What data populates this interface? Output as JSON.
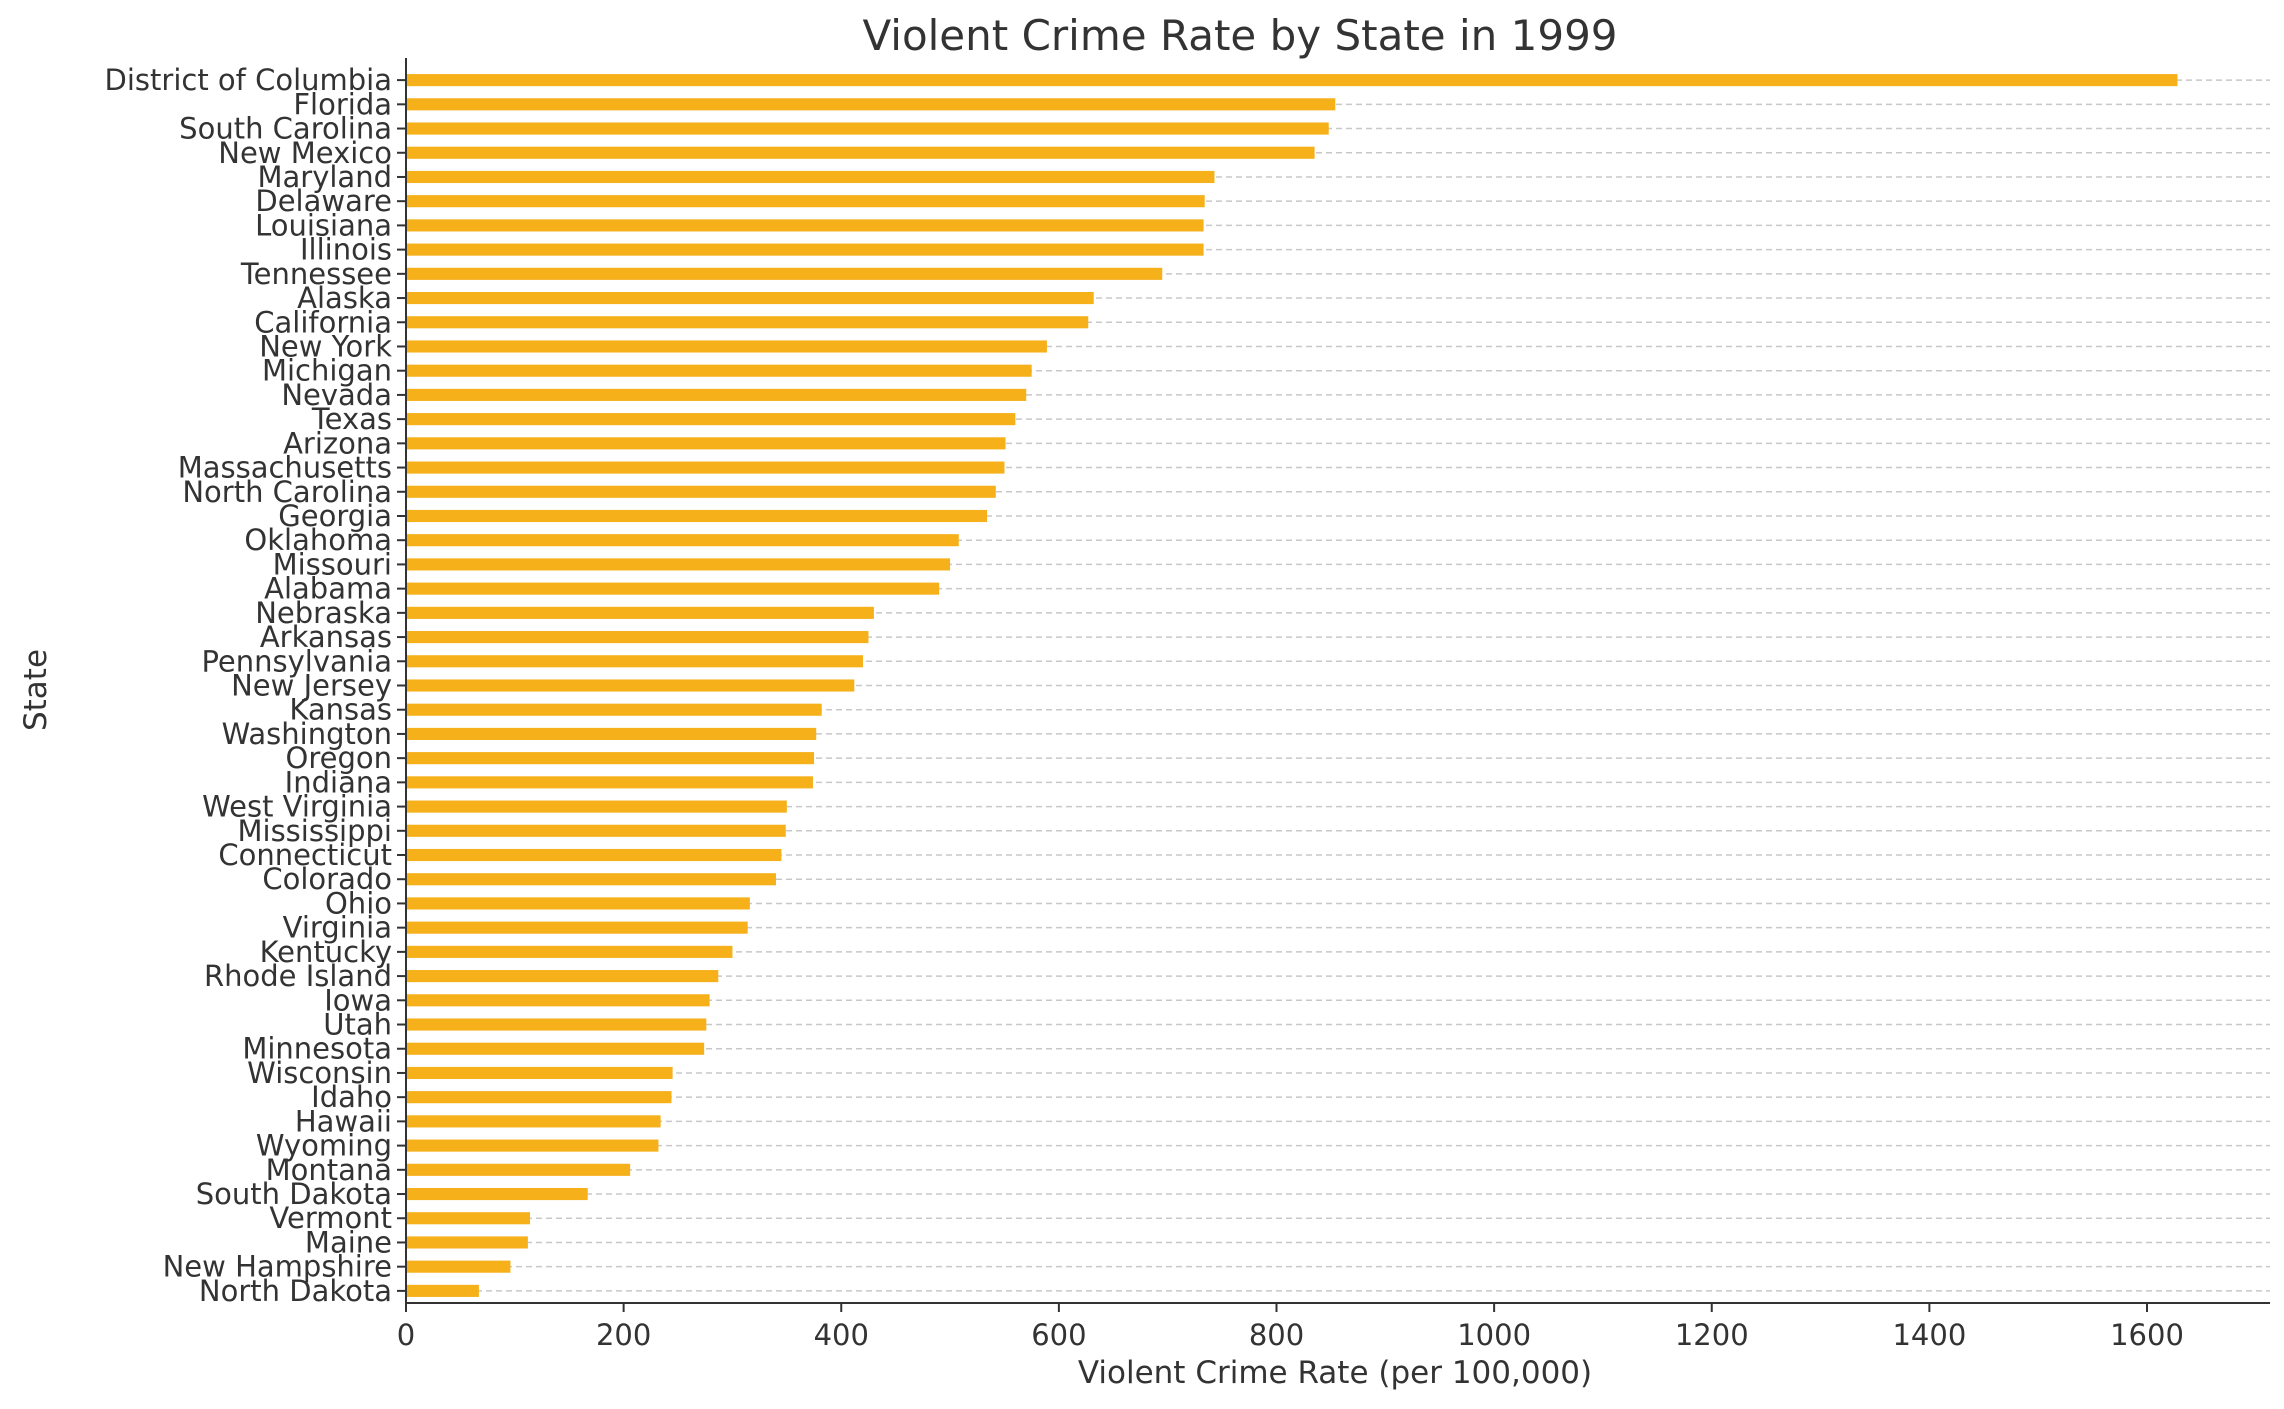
{
  "chart_data": {
    "type": "bar",
    "orientation": "horizontal",
    "title": "Violent Crime Rate by State in 1999",
    "xlabel": "Violent Crime Rate (per 100,000)",
    "ylabel": "State",
    "xlim": [
      0,
      1720
    ],
    "xticks": [
      0,
      200,
      400,
      600,
      800,
      1000,
      1200,
      1400,
      1600
    ],
    "grid": "horizontal dashed",
    "bar_color": "#f5b01a",
    "categories": [
      "District of Columbia",
      "Florida",
      "South Carolina",
      "New Mexico",
      "Maryland",
      "Delaware",
      "Louisiana",
      "Illinois",
      "Tennessee",
      "Alaska",
      "California",
      "New York",
      "Michigan",
      "Nevada",
      "Texas",
      "Arizona",
      "Massachusetts",
      "North Carolina",
      "Georgia",
      "Oklahoma",
      "Missouri",
      "Alabama",
      "Nebraska",
      "Arkansas",
      "Pennsylvania",
      "New Jersey",
      "Kansas",
      "Washington",
      "Oregon",
      "Indiana",
      "West Virginia",
      "Mississippi",
      "Connecticut",
      "Colorado",
      "Ohio",
      "Virginia",
      "Kentucky",
      "Rhode Island",
      "Iowa",
      "Utah",
      "Minnesota",
      "Wisconsin",
      "Idaho",
      "Hawaii",
      "Wyoming",
      "Montana",
      "South Dakota",
      "Vermont",
      "Maine",
      "New Hampshire",
      "North Dakota"
    ],
    "values": [
      1628,
      854,
      848,
      835,
      743,
      734,
      733,
      733,
      695,
      632,
      627,
      589,
      575,
      570,
      560,
      551,
      550,
      542,
      534,
      508,
      500,
      490,
      430,
      425,
      420,
      412,
      382,
      377,
      375,
      374,
      350,
      349,
      345,
      340,
      316,
      314,
      300,
      287,
      279,
      276,
      274,
      245,
      244,
      234,
      232,
      206,
      167,
      114,
      112,
      96,
      67
    ]
  }
}
